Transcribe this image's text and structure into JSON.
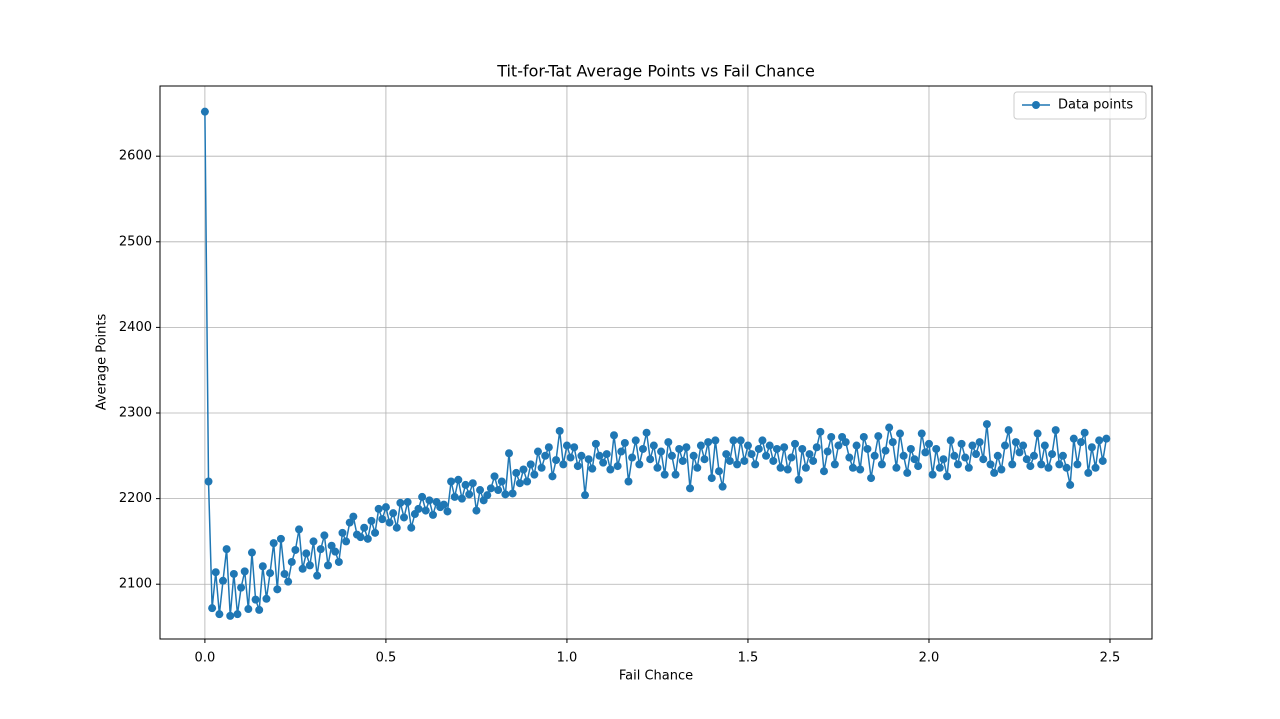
{
  "chart_data": {
    "type": "line",
    "title": "Tit-for-Tat Average Points vs Fail Chance",
    "x_label": "Fail Chance",
    "y_label": "Average Points",
    "x": [
      0,
      0.01,
      0.02,
      0.03,
      0.04,
      0.05,
      0.06,
      0.07,
      0.08,
      0.09,
      0.1,
      0.11,
      0.12,
      0.13,
      0.14,
      0.15,
      0.16,
      0.17,
      0.18,
      0.19,
      0.2,
      0.21,
      0.22,
      0.23,
      0.24,
      0.25,
      0.26,
      0.27,
      0.28,
      0.29,
      0.3,
      0.31,
      0.32,
      0.33,
      0.34,
      0.35,
      0.36,
      0.37,
      0.38,
      0.39,
      0.4,
      0.41,
      0.42,
      0.43,
      0.44,
      0.45,
      0.46,
      0.47,
      0.48,
      0.49,
      0.5,
      0.51,
      0.52,
      0.53,
      0.54,
      0.55,
      0.56,
      0.57,
      0.58,
      0.59,
      0.6,
      0.61,
      0.62,
      0.63,
      0.64,
      0.65,
      0.66,
      0.67,
      0.68,
      0.69,
      0.7,
      0.71,
      0.72,
      0.73,
      0.74,
      0.75,
      0.76,
      0.77,
      0.78,
      0.79,
      0.8,
      0.81,
      0.82,
      0.83,
      0.84,
      0.85,
      0.86,
      0.87,
      0.88,
      0.89,
      0.9,
      0.91,
      0.92,
      0.93,
      0.94,
      0.95,
      0.96,
      0.97,
      0.98,
      0.99,
      1,
      1.01,
      1.02,
      1.03,
      1.04,
      1.05,
      1.06,
      1.07,
      1.08,
      1.09,
      1.1,
      1.11,
      1.12,
      1.13,
      1.14,
      1.15,
      1.16,
      1.17,
      1.18,
      1.19,
      1.2,
      1.21,
      1.22,
      1.23,
      1.24,
      1.25,
      1.26,
      1.27,
      1.28,
      1.29,
      1.3,
      1.31,
      1.32,
      1.33,
      1.34,
      1.35,
      1.36,
      1.37,
      1.38,
      1.39,
      1.4,
      1.41,
      1.42,
      1.43,
      1.44,
      1.45,
      1.46,
      1.47,
      1.48,
      1.49,
      1.5,
      1.51,
      1.52,
      1.53,
      1.54,
      1.55,
      1.56,
      1.57,
      1.58,
      1.59,
      1.6,
      1.61,
      1.62,
      1.63,
      1.64,
      1.65,
      1.66,
      1.67,
      1.68,
      1.69,
      1.7,
      1.71,
      1.72,
      1.73,
      1.74,
      1.75,
      1.76,
      1.77,
      1.78,
      1.79,
      1.8,
      1.81,
      1.82,
      1.83,
      1.84,
      1.85,
      1.86,
      1.87,
      1.88,
      1.89,
      1.9,
      1.91,
      1.92,
      1.93,
      1.94,
      1.95,
      1.96,
      1.97,
      1.98,
      1.99,
      2,
      2.01,
      2.02,
      2.03,
      2.04,
      2.05,
      2.06,
      2.07,
      2.08,
      2.09,
      2.1,
      2.11,
      2.12,
      2.13,
      2.14,
      2.15,
      2.16,
      2.17,
      2.18,
      2.19,
      2.2,
      2.21,
      2.22,
      2.23,
      2.24,
      2.25,
      2.26,
      2.27,
      2.28,
      2.29,
      2.3,
      2.31,
      2.32,
      2.33,
      2.34,
      2.35,
      2.36,
      2.37,
      2.38,
      2.39,
      2.4,
      2.41,
      2.42,
      2.43,
      2.44,
      2.45,
      2.46,
      2.47,
      2.48,
      2.49
    ],
    "series": [
      {
        "name": "Data points",
        "color": "#1f77b4",
        "values": [
          2652,
          2220,
          2072,
          2114,
          2065,
          2104,
          2141,
          2063,
          2112,
          2065,
          2096,
          2115,
          2071,
          2137,
          2082,
          2070,
          2121,
          2083,
          2113,
          2148,
          2094,
          2153,
          2112,
          2103,
          2126,
          2140,
          2164,
          2118,
          2136,
          2122,
          2150,
          2110,
          2141,
          2157,
          2122,
          2145,
          2138,
          2126,
          2160,
          2150,
          2172,
          2179,
          2158,
          2155,
          2166,
          2153,
          2174,
          2160,
          2188,
          2176,
          2190,
          2172,
          2183,
          2166,
          2195,
          2178,
          2196,
          2166,
          2182,
          2188,
          2202,
          2186,
          2198,
          2181,
          2196,
          2190,
          2193,
          2185,
          2220,
          2202,
          2222,
          2200,
          2216,
          2205,
          2218,
          2186,
          2210,
          2198,
          2204,
          2212,
          2226,
          2210,
          2220,
          2205,
          2253,
          2206,
          2230,
          2218,
          2234,
          2220,
          2240,
          2228,
          2255,
          2236,
          2250,
          2260,
          2226,
          2245,
          2279,
          2240,
          2262,
          2248,
          2260,
          2238,
          2250,
          2204,
          2246,
          2235,
          2264,
          2250,
          2242,
          2252,
          2234,
          2274,
          2238,
          2255,
          2265,
          2220,
          2248,
          2268,
          2240,
          2258,
          2277,
          2246,
          2262,
          2236,
          2255,
          2228,
          2266,
          2250,
          2228,
          2258,
          2244,
          2260,
          2212,
          2250,
          2236,
          2262,
          2246,
          2266,
          2224,
          2268,
          2232,
          2214,
          2252,
          2244,
          2268,
          2240,
          2268,
          2244,
          2262,
          2252,
          2240,
          2258,
          2268,
          2250,
          2262,
          2244,
          2258,
          2236,
          2260,
          2234,
          2248,
          2264,
          2222,
          2258,
          2236,
          2252,
          2244,
          2260,
          2278,
          2232,
          2255,
          2272,
          2240,
          2262,
          2272,
          2266,
          2248,
          2236,
          2262,
          2234,
          2272,
          2258,
          2224,
          2250,
          2273,
          2240,
          2256,
          2283,
          2266,
          2236,
          2276,
          2250,
          2230,
          2258,
          2246,
          2238,
          2276,
          2254,
          2264,
          2228,
          2258,
          2236,
          2246,
          2226,
          2268,
          2250,
          2240,
          2264,
          2248,
          2236,
          2262,
          2252,
          2266,
          2246,
          2287,
          2240,
          2230,
          2250,
          2234,
          2262,
          2280,
          2240,
          2266,
          2254,
          2262,
          2246,
          2238,
          2250,
          2276,
          2240,
          2262,
          2236,
          2252,
          2280,
          2240,
          2250,
          2236,
          2216,
          2270,
          2240,
          2266,
          2277,
          2230,
          2260,
          2236,
          2268,
          2244,
          2270
        ]
      }
    ],
    "xlim": [
      -0.124,
      2.616
    ],
    "ylim": [
      2036,
      2682
    ],
    "xticks": [
      {
        "value": 0,
        "label": "0.0"
      },
      {
        "value": 0.5,
        "label": "0.5"
      },
      {
        "value": 1,
        "label": "1.0"
      },
      {
        "value": 1.5,
        "label": "1.5"
      },
      {
        "value": 2,
        "label": "2.0"
      },
      {
        "value": 2.5,
        "label": "2.5"
      }
    ],
    "yticks": [
      2100,
      2200,
      2300,
      2400,
      2500,
      2600
    ],
    "grid": true,
    "legend": "upper right"
  }
}
